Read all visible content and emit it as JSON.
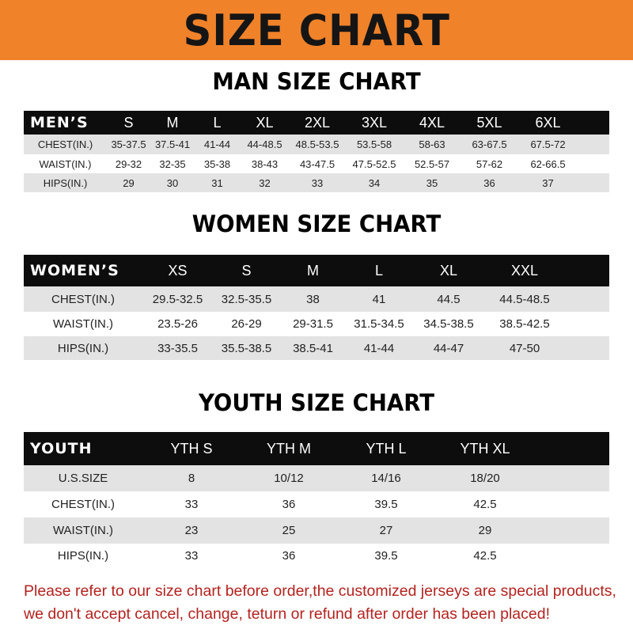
{
  "banner": {
    "title": "SIZE CHART",
    "color": "#f0822a"
  },
  "men": {
    "title": "MAN SIZE CHART",
    "header": "MEN’S",
    "sizes": [
      "S",
      "M",
      "L",
      "XL",
      "2XL",
      "3XL",
      "4XL",
      "5XL",
      "6XL"
    ],
    "rows": [
      {
        "label": "CHEST(IN.)",
        "values": [
          "35-37.5",
          "37.5-41",
          "41-44",
          "44-48.5",
          "48.5-53.5",
          "53.5-58",
          "58-63",
          "63-67.5",
          "67.5-72"
        ]
      },
      {
        "label": "WAIST(IN.)",
        "values": [
          "29-32",
          "32-35",
          "35-38",
          "38-43",
          "43-47.5",
          "47.5-52.5",
          "52.5-57",
          "57-62",
          "62-66.5"
        ]
      },
      {
        "label": "HIPS(IN.)",
        "values": [
          "29",
          "30",
          "31",
          "32",
          "33",
          "34",
          "35",
          "36",
          "37"
        ]
      }
    ]
  },
  "women": {
    "title": "WOMEN SIZE CHART",
    "header": "WOMEN’S",
    "sizes": [
      "XS",
      "S",
      "M",
      "L",
      "XL",
      "XXL"
    ],
    "rows": [
      {
        "label": "CHEST(IN.)",
        "values": [
          "29.5-32.5",
          "32.5-35.5",
          "38",
          "41",
          "44.5",
          "44.5-48.5"
        ]
      },
      {
        "label": "WAIST(IN.)",
        "values": [
          "23.5-26",
          "26-29",
          "29-31.5",
          "31.5-34.5",
          "34.5-38.5",
          "38.5-42.5"
        ]
      },
      {
        "label": "HIPS(IN.)",
        "values": [
          "33-35.5",
          "35.5-38.5",
          "38.5-41",
          "41-44",
          "44-47",
          "47-50"
        ]
      }
    ]
  },
  "youth": {
    "title": "YOUTH SIZE CHART",
    "header": "YOUTH",
    "sizes": [
      "YTH S",
      "YTH M",
      "YTH L",
      "YTH XL"
    ],
    "rows": [
      {
        "label": "U.S.SIZE",
        "values": [
          "8",
          "10/12",
          "14/16",
          "18/20"
        ]
      },
      {
        "label": "CHEST(IN.)",
        "values": [
          "33",
          "36",
          "39.5",
          "42.5"
        ]
      },
      {
        "label": "WAIST(IN.)",
        "values": [
          "23",
          "25",
          "27",
          "29"
        ]
      },
      {
        "label": "HIPS(IN.)",
        "values": [
          "33",
          "36",
          "39.5",
          "42.5"
        ]
      }
    ]
  },
  "notice": {
    "line1": "Please refer to our size chart before order,the customized jerseys are special products,",
    "line2": "we don't accept cancel, change, teturn or refund after order has been placed!",
    "color": "#b3231f"
  }
}
